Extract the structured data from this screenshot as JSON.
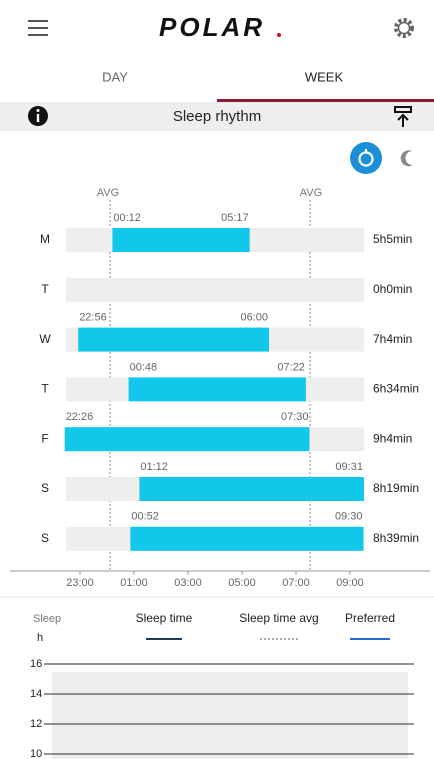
{
  "header": {
    "logo": "POLAR"
  },
  "tabs": [
    "DAY",
    "WEEK"
  ],
  "panel": {
    "title": "Sleep rhythm"
  },
  "avg_labels": [
    "AVG",
    "AVG"
  ],
  "rows": [
    {
      "day": "M",
      "start": "00:12",
      "end": "05:17",
      "duration": "5h5min"
    },
    {
      "day": "T",
      "start": null,
      "end": null,
      "duration": "0h0min"
    },
    {
      "day": "W",
      "start": "22:56",
      "end": "06:00",
      "duration": "7h4min"
    },
    {
      "day": "T",
      "start": "00:48",
      "end": "07:22",
      "duration": "6h34min"
    },
    {
      "day": "F",
      "start": "22:26",
      "end": "07:30",
      "duration": "9h4min"
    },
    {
      "day": "S",
      "start": "01:12",
      "end": "09:31",
      "duration": "8h19min"
    },
    {
      "day": "S",
      "start": "00:52",
      "end": "09:30",
      "duration": "8h39min"
    }
  ],
  "x_axis": [
    "23:00",
    "01:00",
    "03:00",
    "05:00",
    "07:00",
    "09:00"
  ],
  "bottom": {
    "label": "Sleep",
    "unit": "h",
    "legend": [
      "Sleep time",
      "Sleep time avg",
      "Preferred"
    ],
    "yticks": [
      16,
      14,
      12,
      10
    ]
  }
}
